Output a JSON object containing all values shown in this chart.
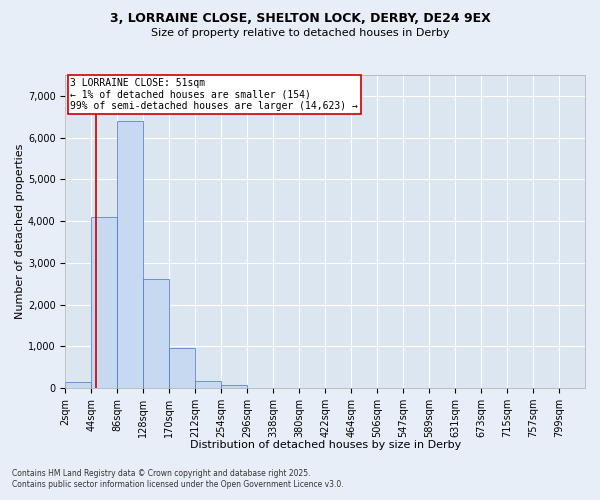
{
  "title_line1": "3, LORRAINE CLOSE, SHELTON LOCK, DERBY, DE24 9EX",
  "title_line2": "Size of property relative to detached houses in Derby",
  "xlabel": "Distribution of detached houses by size in Derby",
  "ylabel": "Number of detached properties",
  "bar_edges": [
    2,
    44,
    86,
    128,
    170,
    212,
    254,
    296,
    338,
    380,
    422,
    464,
    506,
    547,
    589,
    631,
    673,
    715,
    757,
    799,
    841
  ],
  "bar_heights": [
    154,
    4100,
    6400,
    2600,
    950,
    175,
    60,
    10,
    5,
    2,
    1,
    0,
    0,
    0,
    0,
    0,
    0,
    0,
    0,
    0
  ],
  "bar_color": "#c6d9f0",
  "bar_edge_color": "#4472c4",
  "property_line_x": 51,
  "property_line_color": "#cc0000",
  "annotation_text": "3 LORRAINE CLOSE: 51sqm\n← 1% of detached houses are smaller (154)\n99% of semi-detached houses are larger (14,623) →",
  "annotation_box_color": "#cc0000",
  "ylim": [
    0,
    7500
  ],
  "yticks": [
    0,
    1000,
    2000,
    3000,
    4000,
    5000,
    6000,
    7000
  ],
  "footnote_line1": "Contains HM Land Registry data © Crown copyright and database right 2025.",
  "footnote_line2": "Contains public sector information licensed under the Open Government Licence v3.0.",
  "bg_color": "#e8eef7",
  "plot_bg_color": "#dce6f1",
  "grid_color": "#ffffff",
  "title_fontsize": 9,
  "subtitle_fontsize": 8,
  "axis_label_fontsize": 8,
  "tick_fontsize": 7,
  "annotation_fontsize": 7,
  "footnote_fontsize": 5.5
}
